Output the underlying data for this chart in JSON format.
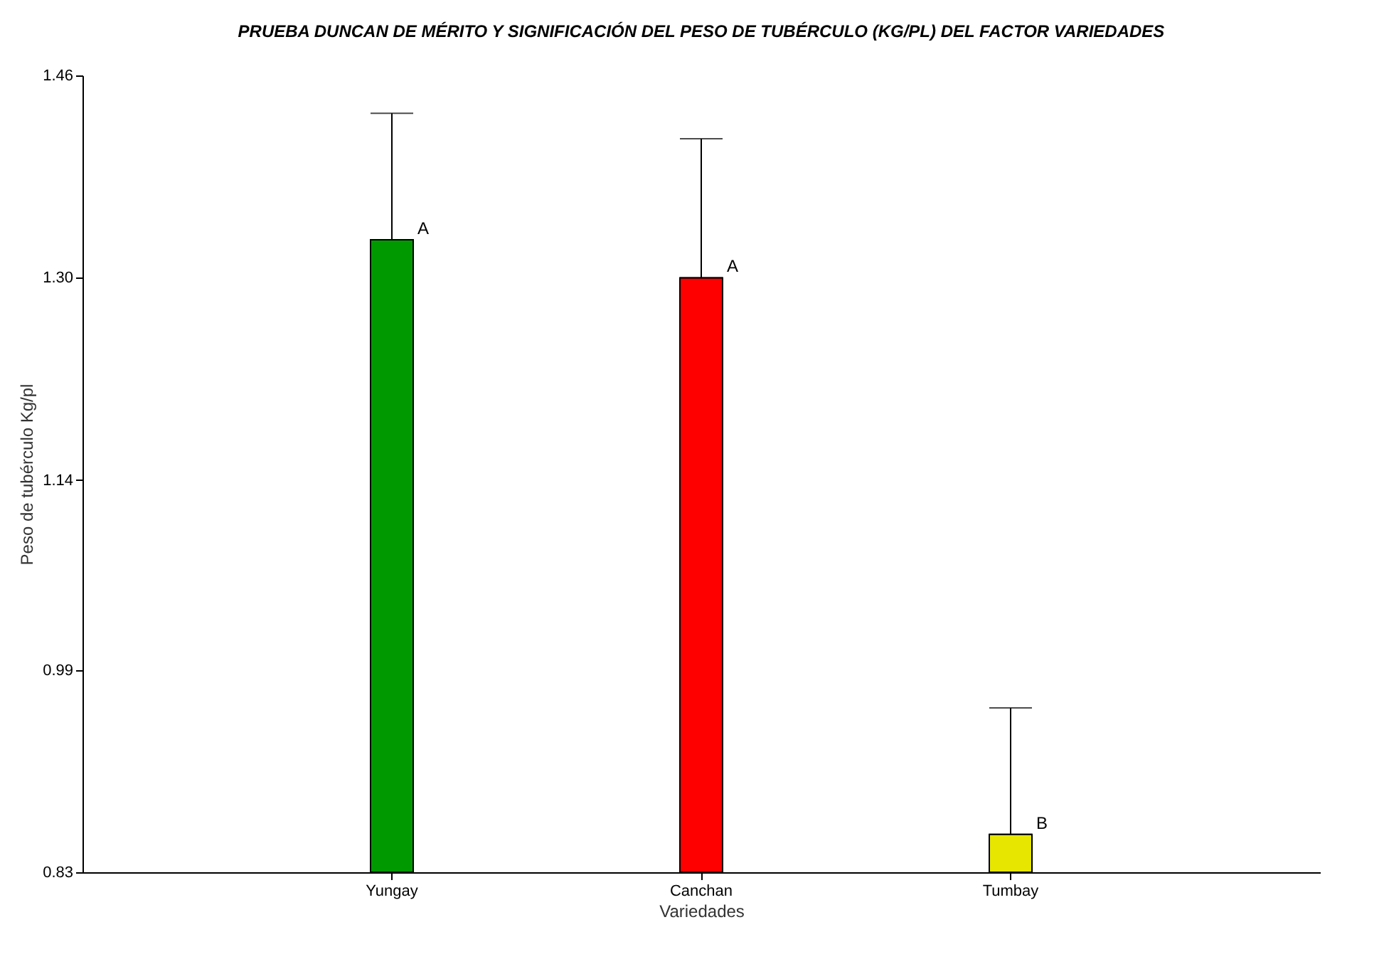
{
  "chart_data": {
    "type": "bar",
    "title": "PRUEBA DUNCAN DE MÉRITO Y SIGNIFICACIÓN DEL PESO DE TUBÉRCULO (KG/PL) DEL FACTOR VARIEDADES",
    "xlabel": "Variedades",
    "ylabel": "Peso de tubérculo Kg/pl",
    "categories": [
      "Yungay",
      "Canchan",
      "Tumbay"
    ],
    "values": [
      1.33,
      1.3,
      0.86
    ],
    "colors": [
      "#009900",
      "#ff0000",
      "#e6e600"
    ],
    "errors": [
      [
        1.33,
        1.43
      ],
      [
        1.3,
        1.41
      ],
      [
        0.86,
        0.96
      ]
    ],
    "ylim": [
      0.83,
      1.46
    ],
    "yticks": [
      0.83,
      0.99,
      1.14,
      {
        "value": 1.3,
        "label": "1.30"
      },
      1.46
    ],
    "grid": false,
    "annotations": [
      {
        "text": "A",
        "x": "Yungay",
        "y": 1.33
      },
      {
        "text": "A",
        "x": "Canchan",
        "y": 1.3
      },
      {
        "text": "B",
        "x": "Tumbay",
        "y": 0.86
      }
    ]
  }
}
